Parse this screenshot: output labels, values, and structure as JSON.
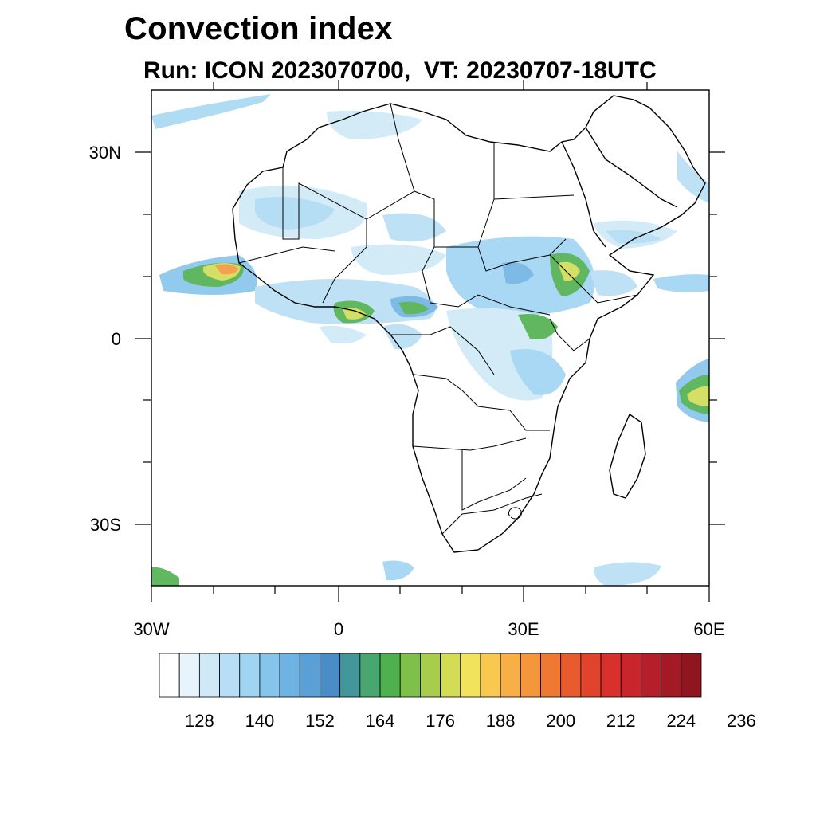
{
  "header": {
    "title": "Convection index",
    "subtitle": "Run: ICON 2023070700,  VT: 20230707-18UTC"
  },
  "map": {
    "lon_range": [
      -30,
      60
    ],
    "lat_range": [
      -40,
      40
    ],
    "x_ticks": [
      "30W",
      "0",
      "30E",
      "60E"
    ],
    "y_ticks": [
      "30N",
      "0",
      "30S"
    ],
    "field": "Convection index",
    "region": "Africa"
  },
  "colorbar": {
    "labels": [
      "128",
      "140",
      "152",
      "164",
      "176",
      "188",
      "200",
      "212",
      "224",
      "236"
    ],
    "colors": [
      "#ffffff",
      "#e8f4fb",
      "#cfe9f7",
      "#b7def5",
      "#9fd4f3",
      "#86c5eb",
      "#6fb3e3",
      "#5a9fd6",
      "#4a8cc4",
      "#43979a",
      "#4aa66f",
      "#4fb04f",
      "#7ec04a",
      "#a8cc4c",
      "#d2dc55",
      "#f2e35c",
      "#f8c94e",
      "#f7b045",
      "#f4963b",
      "#ef7833",
      "#e85b2e",
      "#e2432d",
      "#d8302d",
      "#c9252d",
      "#b51e2b",
      "#a31a25",
      "#8f1620"
    ]
  }
}
